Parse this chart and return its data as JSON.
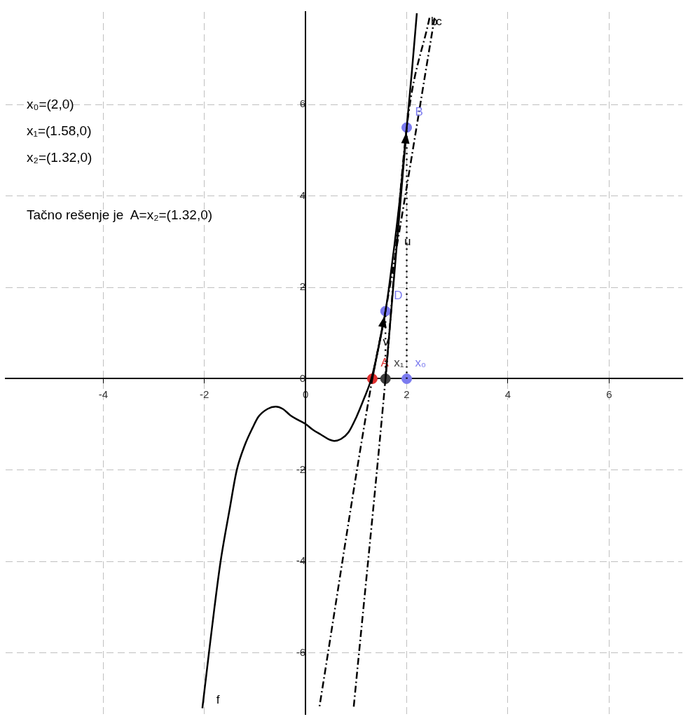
{
  "chart_data": {
    "type": "line",
    "xlim": [
      -5.93,
      7.45
    ],
    "ylim": [
      -7.34,
      8.03
    ],
    "xticks": [
      -4,
      -2,
      0,
      2,
      4,
      6
    ],
    "yticks": [
      -6,
      -4,
      -2,
      0,
      2,
      4,
      6
    ],
    "grid": true,
    "legend": false,
    "annotations": [
      "x₀=(2,0)",
      "x₁=(1.58,0)",
      "x₂=(1.32,0)",
      "Tačno rešenje je  A=x₂=(1.32,0)",
      {
        "text": "u",
        "x": 1.95,
        "y": 3
      },
      {
        "text": "v",
        "x": 1.53,
        "y": 0.8
      }
    ],
    "series": [
      {
        "name": "f",
        "type": "line",
        "color": "#000000",
        "line_style": "solid",
        "marker": "none",
        "x": [
          -2.04,
          -1.91,
          -1.8,
          -1.68,
          -1.5,
          -1.36,
          -1.2,
          -1.05,
          -0.93,
          -0.75,
          -0.59,
          -0.45,
          -0.3,
          -0.15,
          0,
          0.15,
          0.3,
          0.45,
          0.57,
          0.7,
          0.85,
          1,
          1.15,
          1.3,
          1.45,
          1.58,
          1.65,
          1.76,
          1.87,
          2,
          2.1,
          2.2
        ],
        "values": [
          -7.21,
          -6,
          -5,
          -4,
          -2.85,
          -2,
          -1.45,
          -1.08,
          -0.83,
          -0.66,
          -0.61,
          -0.66,
          -0.8,
          -0.9,
          -0.99,
          -1.12,
          -1.22,
          -1.32,
          -1.36,
          -1.32,
          -1.17,
          -0.85,
          -0.45,
          0,
          0.72,
          1.48,
          2,
          2.95,
          4,
          5.5,
          6.7,
          8.0
        ]
      },
      {
        "name": "b",
        "type": "line",
        "color": "#000000",
        "line_style": "dashed",
        "marker": "none",
        "x": [
          2.45,
          2,
          1.58,
          0.95
        ],
        "values": [
          7.9,
          5.5,
          0,
          -7.21
        ]
      },
      {
        "name": "c",
        "type": "line",
        "color": "#000000",
        "line_style": "dashed",
        "marker": "none",
        "x": [
          2.55,
          1.58,
          1.32,
          0.27
        ],
        "values": [
          7.9,
          1.48,
          0,
          -7.21
        ]
      },
      {
        "type": "line",
        "color": "#000000",
        "line_style": "dotted",
        "marker": "none",
        "x": [
          2,
          2
        ],
        "values": [
          0,
          5.5
        ]
      },
      {
        "type": "line",
        "color": "#000000",
        "line_style": "dotted",
        "marker": "none",
        "x": [
          1.58,
          1.58
        ],
        "values": [
          0,
          1.48
        ]
      },
      {
        "name": "B",
        "type": "scatter",
        "color": "#7b7bef",
        "marker": "circle",
        "x": [
          2
        ],
        "values": [
          5.5
        ]
      },
      {
        "name": "D",
        "type": "scatter",
        "color": "#7b7bef",
        "marker": "circle",
        "x": [
          1.58
        ],
        "values": [
          1.48
        ]
      },
      {
        "name": "x₀",
        "type": "scatter",
        "color": "#7b7bef",
        "marker": "circle",
        "x": [
          2
        ],
        "values": [
          0
        ]
      },
      {
        "name": "x₁",
        "type": "scatter",
        "color": "#404040",
        "marker": "circle",
        "x": [
          1.58
        ],
        "values": [
          0
        ]
      },
      {
        "name": "A",
        "type": "scatter",
        "color": "#e03030",
        "marker": "circle",
        "x": [
          1.32
        ],
        "values": [
          0
        ]
      }
    ]
  }
}
